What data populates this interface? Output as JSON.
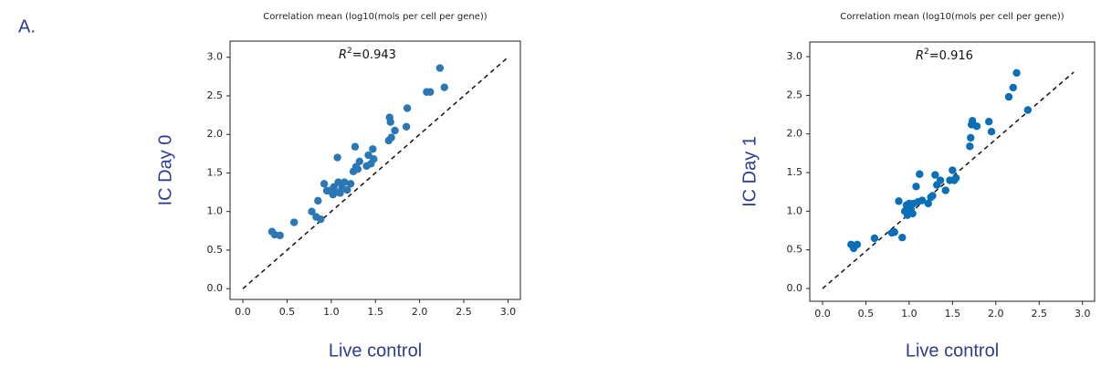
{
  "panel_label": "A.",
  "chart_data": [
    {
      "type": "scatter",
      "title": "Correlation mean (log10(mols per cell per gene))",
      "x_label": "Live control",
      "y_label": "IC Day 0",
      "annotation": {
        "symbol": "R",
        "exponent": "2",
        "text": "=0.943"
      },
      "color": "#2a77b4",
      "x": [
        0.33,
        0.36,
        0.42,
        0.58,
        0.78,
        0.83,
        0.85,
        0.88,
        0.92,
        0.95,
        0.98,
        1.02,
        1.03,
        1.05,
        1.07,
        1.08,
        1.1,
        1.12,
        1.15,
        1.18,
        1.22,
        1.25,
        1.27,
        1.28,
        1.3,
        1.32,
        1.4,
        1.42,
        1.45,
        1.47,
        1.48,
        1.65,
        1.66,
        1.67,
        1.68,
        1.72,
        1.85,
        1.86,
        2.08,
        2.12,
        2.23,
        2.28
      ],
      "values": [
        0.74,
        0.7,
        0.69,
        0.86,
        1.0,
        0.93,
        1.14,
        0.9,
        1.36,
        1.27,
        1.27,
        1.22,
        1.32,
        1.25,
        1.7,
        1.38,
        1.24,
        1.3,
        1.38,
        1.28,
        1.36,
        1.52,
        1.84,
        1.58,
        1.55,
        1.65,
        1.59,
        1.73,
        1.62,
        1.81,
        1.68,
        1.92,
        2.22,
        2.16,
        1.96,
        2.05,
        2.1,
        2.34,
        2.55,
        2.55,
        2.86,
        2.61
      ],
      "line_x": [
        0,
        3
      ],
      "line_y": [
        0,
        3
      ],
      "xlim": [
        -0.145,
        3.14
      ],
      "ylim": [
        -0.14,
        3.21
      ],
      "xticks": [
        {
          "value": 0,
          "label": "0.0"
        },
        {
          "value": 0.5,
          "label": "0.5"
        },
        {
          "value": 1,
          "label": "1.0"
        },
        {
          "value": 1.5,
          "label": "1.5"
        },
        {
          "value": 2,
          "label": "2.0"
        },
        {
          "value": 2.5,
          "label": "2.5"
        },
        {
          "value": 3,
          "label": "3.0"
        }
      ],
      "yticks": [
        {
          "value": 0,
          "label": "0.0"
        },
        {
          "value": 0.5,
          "label": "0.5"
        },
        {
          "value": 1,
          "label": "1.0"
        },
        {
          "value": 1.5,
          "label": "1.5"
        },
        {
          "value": 2,
          "label": "2.0"
        },
        {
          "value": 2.5,
          "label": "2.5"
        },
        {
          "value": 3,
          "label": "3.0"
        }
      ]
    },
    {
      "type": "scatter",
      "title": "Correlation mean (log10(mols per cell per gene))",
      "x_label": "Live control",
      "y_label": "IC Day 1",
      "annotation": {
        "symbol": "R",
        "exponent": "2",
        "text": "=0.916"
      },
      "color": "#0a6fb8",
      "x": [
        0.33,
        0.36,
        0.4,
        0.6,
        0.8,
        0.83,
        0.88,
        0.92,
        0.95,
        0.97,
        0.98,
        1.0,
        1.02,
        1.04,
        1.05,
        1.08,
        1.1,
        1.12,
        1.15,
        1.22,
        1.25,
        1.27,
        1.3,
        1.32,
        1.36,
        1.42,
        1.47,
        1.5,
        1.52,
        1.54,
        1.7,
        1.71,
        1.72,
        1.73,
        1.78,
        1.92,
        1.95,
        2.15,
        2.2,
        2.24,
        2.37
      ],
      "values": [
        0.57,
        0.52,
        0.57,
        0.65,
        0.72,
        0.73,
        1.13,
        0.66,
        1.0,
        1.08,
        0.95,
        1.1,
        1.03,
        0.97,
        1.1,
        1.32,
        1.12,
        1.48,
        1.14,
        1.1,
        1.18,
        1.2,
        1.47,
        1.34,
        1.4,
        1.27,
        1.4,
        1.53,
        1.4,
        1.43,
        1.84,
        1.95,
        2.12,
        2.17,
        2.1,
        2.16,
        2.03,
        2.48,
        2.6,
        2.79,
        2.31
      ],
      "line_x": [
        0,
        2.9
      ],
      "line_y": [
        0,
        2.8
      ],
      "xlim": [
        -0.147,
        3.14
      ],
      "ylim": [
        -0.165,
        3.19
      ],
      "xticks": [
        {
          "value": 0,
          "label": "0.0"
        },
        {
          "value": 0.5,
          "label": "0.5"
        },
        {
          "value": 1,
          "label": "1.0"
        },
        {
          "value": 1.5,
          "label": "1.5"
        },
        {
          "value": 2,
          "label": "2.0"
        },
        {
          "value": 2.5,
          "label": "2.5"
        },
        {
          "value": 3,
          "label": "3.0"
        }
      ],
      "yticks": [
        {
          "value": 0,
          "label": "0.0"
        },
        {
          "value": 0.5,
          "label": "0.5"
        },
        {
          "value": 1,
          "label": "1.0"
        },
        {
          "value": 1.5,
          "label": "1.5"
        },
        {
          "value": 2,
          "label": "2.0"
        },
        {
          "value": 2.5,
          "label": "2.5"
        },
        {
          "value": 3,
          "label": "3.0"
        }
      ]
    }
  ]
}
